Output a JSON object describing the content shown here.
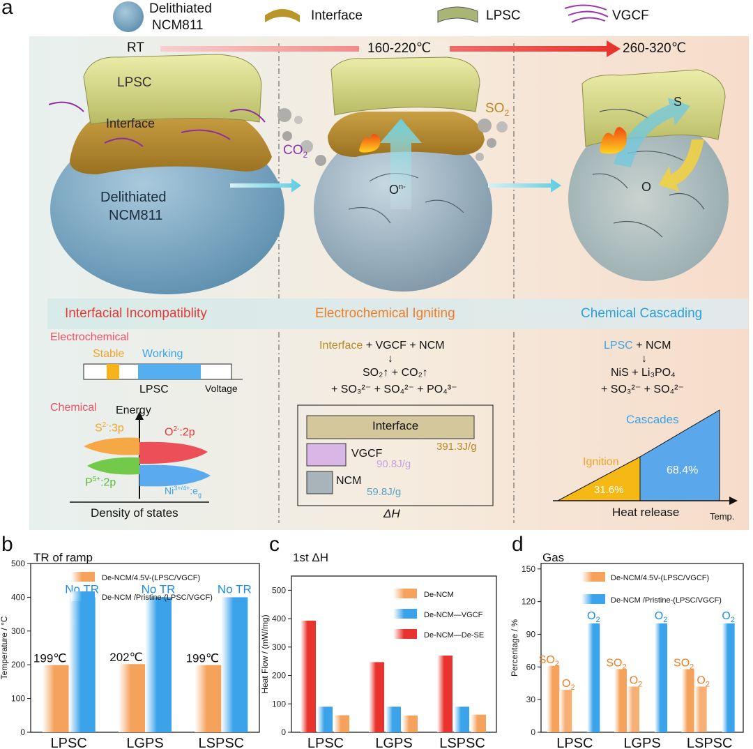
{
  "panel_labels": {
    "a": "a",
    "b": "b",
    "c": "c",
    "d": "d"
  },
  "legend_top": {
    "particle": "Delithiated",
    "particle2": "NCM811",
    "interface": "Interface",
    "lpsc": "LPSC",
    "vgcf": "VGCF"
  },
  "temperature": {
    "rt": "RT",
    "mid": "160-220℃",
    "high": "260-320℃"
  },
  "particle_labels": {
    "lpsc": "LPSC",
    "interface": "Interface",
    "delithiated": "Delithiated",
    "ncm": "NCM811",
    "co2": "CO",
    "co2_sub": "2",
    "so2": "SO",
    "so2_sub": "2",
    "on": "O",
    "on_sup": "n-",
    "s": "S",
    "o": "O"
  },
  "stages": {
    "s1": "Interfacial Incompatiblity",
    "s2": "Electrochemical Igniting",
    "s3": "Chemical Cascading",
    "s1_color": "#e53935",
    "s2_color": "#ef7d22",
    "s3_color": "#2a9fd8"
  },
  "col1": {
    "electrochemical": "Electrochemical",
    "stable": "Stable",
    "working": "Working",
    "lpsc": "LPSC",
    "voltage": "Voltage",
    "chemical": "Chemical",
    "energy": "Energy",
    "s2": "S",
    "s2_sup": "2-",
    "s2_rest": ":3p",
    "o2": "O",
    "o2_sup": "2-",
    "o2_rest": ":2p",
    "p5": "P",
    "p5_sup": "5+",
    "p5_rest": ":2p",
    "ni": "Ni",
    "ni_sup": "3+/4+",
    "ni_rest": ":e",
    "ni_sub": "g",
    "dos": "Density of states"
  },
  "col2": {
    "eq_interface": "Interface",
    "eq_rest": " + VGCF + NCM",
    "arrow": "↓",
    "eq2": "SO₂↑ + CO₂↑",
    "eq3": "+ SO₃²⁻ + SO₄²⁻ + PO₄³⁻",
    "bar_interface": "Interface",
    "bar_interface_val": "391.3J/g",
    "bar_vgcf": "VGCF",
    "bar_vgcf_val": "90.8J/g",
    "bar_ncm": "NCM",
    "bar_ncm_val": "59.8J/g",
    "delta_h": "ΔH"
  },
  "col3": {
    "eq_lpsc": "LPSC",
    "eq_rest": " + NCM",
    "arrow": "↓",
    "eq2": "NiS + Li₃PO₄",
    "eq3": "+ SO₃²⁻ + SO₄²⁻",
    "cascades": "Cascades",
    "ignition": "Ignition",
    "ignition_pct": "31.6%",
    "cascade_pct": "68.4%",
    "heat_release": "Heat release",
    "temp": "Temp."
  },
  "colors": {
    "orange_bar": "#f5a25d",
    "blue_bar": "#3ba3ea",
    "red_bar": "#e8332e",
    "orange_text": "#ef7d22",
    "blue_text": "#1c8ce6"
  },
  "chart_data": [
    {
      "type": "bar",
      "panel": "b",
      "title": "TR of ramp",
      "xlabel": "",
      "ylabel": "Temperature / °C",
      "ylim": [
        0,
        500
      ],
      "yticks": [
        0,
        100,
        200,
        300,
        400,
        500
      ],
      "categories": [
        "LPSC",
        "LGPS",
        "LSPSC"
      ],
      "series": [
        {
          "name": "De-NCM/4.5V-(LPSC/VGCF)",
          "values": [
            199,
            202,
            199
          ],
          "labels": [
            "199℃",
            "202℃",
            "199℃"
          ],
          "color": "#f5a25d"
        },
        {
          "name": "De-NCM /Pristine-(LPSC/VGCF)",
          "values": [
            400,
            400,
            400
          ],
          "labels": [
            "No TR",
            "No TR",
            "No TR"
          ],
          "color": "#3ba3ea"
        }
      ]
    },
    {
      "type": "bar",
      "panel": "c",
      "title": "1st ΔH",
      "xlabel": "",
      "ylabel": "Heat Flow / (mW/mg)",
      "ylim": [
        0,
        550
      ],
      "yticks": [
        0,
        100,
        200,
        300,
        400,
        500
      ],
      "categories": [
        "LPSC",
        "LGPS",
        "LSPSC"
      ],
      "series": [
        {
          "name": "De-NCM—De-SE",
          "values": [
            393,
            247,
            270
          ],
          "color": "#e8332e"
        },
        {
          "name": "De-NCM—VGCF",
          "values": [
            90,
            90,
            90
          ],
          "color": "#3ba3ea"
        },
        {
          "name": "De-NCM",
          "values": [
            60,
            59,
            62
          ],
          "color": "#f5a25d"
        }
      ],
      "legend_order": [
        "De-NCM",
        "De-NCM—VGCF",
        "De-NCM—De-SE"
      ]
    },
    {
      "type": "bar",
      "panel": "d",
      "title": "Gas",
      "xlabel": "",
      "ylabel": "Percentage / %",
      "ylim": [
        0,
        155
      ],
      "yticks": [
        0,
        30,
        60,
        90,
        120,
        150
      ],
      "categories": [
        "LPSC",
        "LGPS",
        "LSPSC"
      ],
      "series": [
        {
          "name": "De-NCM/4.5V-(LPSC/VGCF)",
          "sub": [
            {
              "gas": "SO",
              "sub": "2",
              "values": [
                61,
                58,
                58
              ]
            },
            {
              "gas": "O",
              "sub": "2",
              "values": [
                39,
                42,
                42
              ]
            }
          ],
          "color": "#f5a25d"
        },
        {
          "name": "De-NCM /Pristine-(LPSC/VGCF)",
          "sub": [
            {
              "gas": "O",
              "sub": "2",
              "values": [
                100,
                100,
                100
              ]
            }
          ],
          "color": "#3ba3ea"
        }
      ]
    }
  ]
}
